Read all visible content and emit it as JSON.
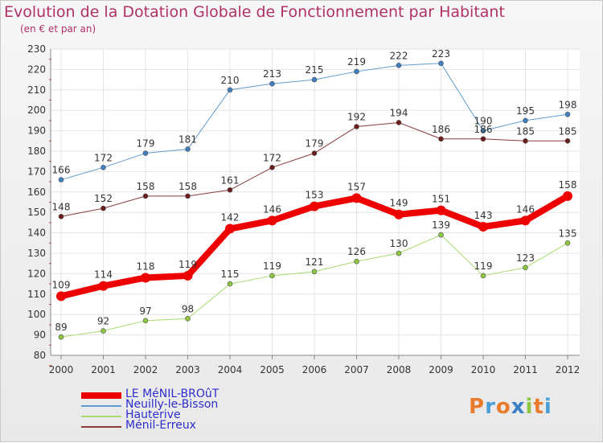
{
  "header": {
    "title": "Evolution de la Dotation Globale de Fonctionnement par Habitant",
    "subtitle": "(en € et par an)"
  },
  "brand": {
    "letters": [
      "P",
      "r",
      "o",
      "x",
      "i",
      "t",
      "i"
    ],
    "colors": [
      "#e97b2e",
      "#4a9fd8",
      "#e97b2e",
      "#3b7fc4",
      "#8cc63f",
      "#e97b2e",
      "#4a9fd8"
    ]
  },
  "chart_data": {
    "type": "line",
    "title": "Evolution de la Dotation Globale de Fonctionnement par Habitant",
    "subtitle": "(en € et par an)",
    "xlabel": "",
    "ylabel": "",
    "ylim": [
      80,
      230
    ],
    "yticks": [
      80,
      90,
      100,
      110,
      120,
      130,
      140,
      150,
      160,
      170,
      180,
      190,
      200,
      210,
      220,
      230
    ],
    "grid": true,
    "legend_position": "bottom-left",
    "x": [
      "2000",
      "2001",
      "2002",
      "2003",
      "2004",
      "2005",
      "2006",
      "2007",
      "2008",
      "2009",
      "2010",
      "2011",
      "2012"
    ],
    "series": [
      {
        "name": "Neuilly-le-Bisson",
        "color": "#5e9bd0",
        "marker": "#3f7fc0",
        "width": 1,
        "values": [
          166,
          172,
          179,
          181,
          210,
          213,
          215,
          219,
          222,
          223,
          190,
          195,
          198
        ]
      },
      {
        "name": "Ménil-Erreux",
        "color": "#8a3a3a",
        "marker": "#6b1c1c",
        "width": 1,
        "values": [
          148,
          152,
          158,
          158,
          161,
          172,
          179,
          192,
          194,
          186,
          186,
          185,
          185
        ]
      },
      {
        "name": "LE MéNIL-BROûT",
        "color": "#ee0000",
        "marker": "#ee0000",
        "width": 8,
        "values": [
          109,
          114,
          118,
          119,
          142,
          146,
          153,
          157,
          149,
          151,
          143,
          146,
          158
        ]
      },
      {
        "name": "Hauterive",
        "color": "#a6dc6f",
        "marker": "#8cc63f",
        "width": 1,
        "values": [
          89,
          92,
          97,
          98,
          115,
          119,
          121,
          126,
          130,
          139,
          119,
          123,
          135
        ]
      }
    ],
    "legend_order": [
      "LE MéNIL-BROûT",
      "Neuilly-le-Bisson",
      "Hauterive",
      "Ménil-Erreux"
    ]
  }
}
